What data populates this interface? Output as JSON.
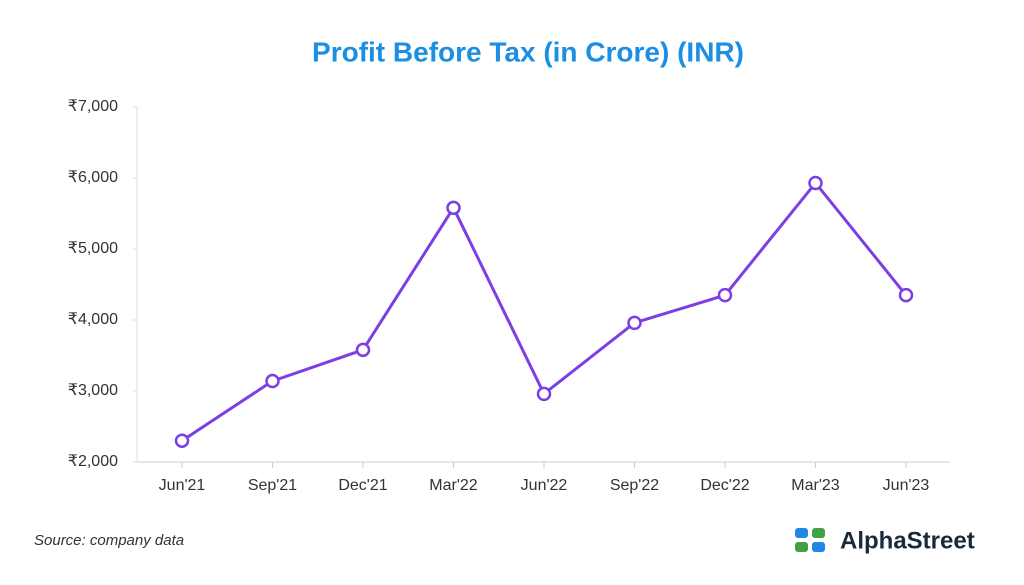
{
  "chart_data": {
    "type": "line",
    "title": "Profit Before Tax (in Crore) (INR)",
    "categories": [
      "Jun'21",
      "Sep'21",
      "Dec'21",
      "Mar'22",
      "Jun'22",
      "Sep'22",
      "Dec'22",
      "Mar'23",
      "Jun'23"
    ],
    "series": [
      {
        "color": "#7b3fe4",
        "values": [
          2300,
          3140,
          3580,
          5580,
          2960,
          3960,
          4350,
          5930,
          4350
        ]
      }
    ],
    "ylim": [
      2000,
      7000
    ],
    "yticks": [
      {
        "value": 2000,
        "label": "₹2,000"
      },
      {
        "value": 3000,
        "label": "₹3,000"
      },
      {
        "value": 4000,
        "label": "₹4,000"
      },
      {
        "value": 5000,
        "label": "₹5,000"
      },
      {
        "value": 6000,
        "label": "₹6,000"
      },
      {
        "value": 7000,
        "label": "₹7,000"
      }
    ],
    "grid": false
  },
  "source": "Source: company data",
  "brand": "AlphaStreet"
}
